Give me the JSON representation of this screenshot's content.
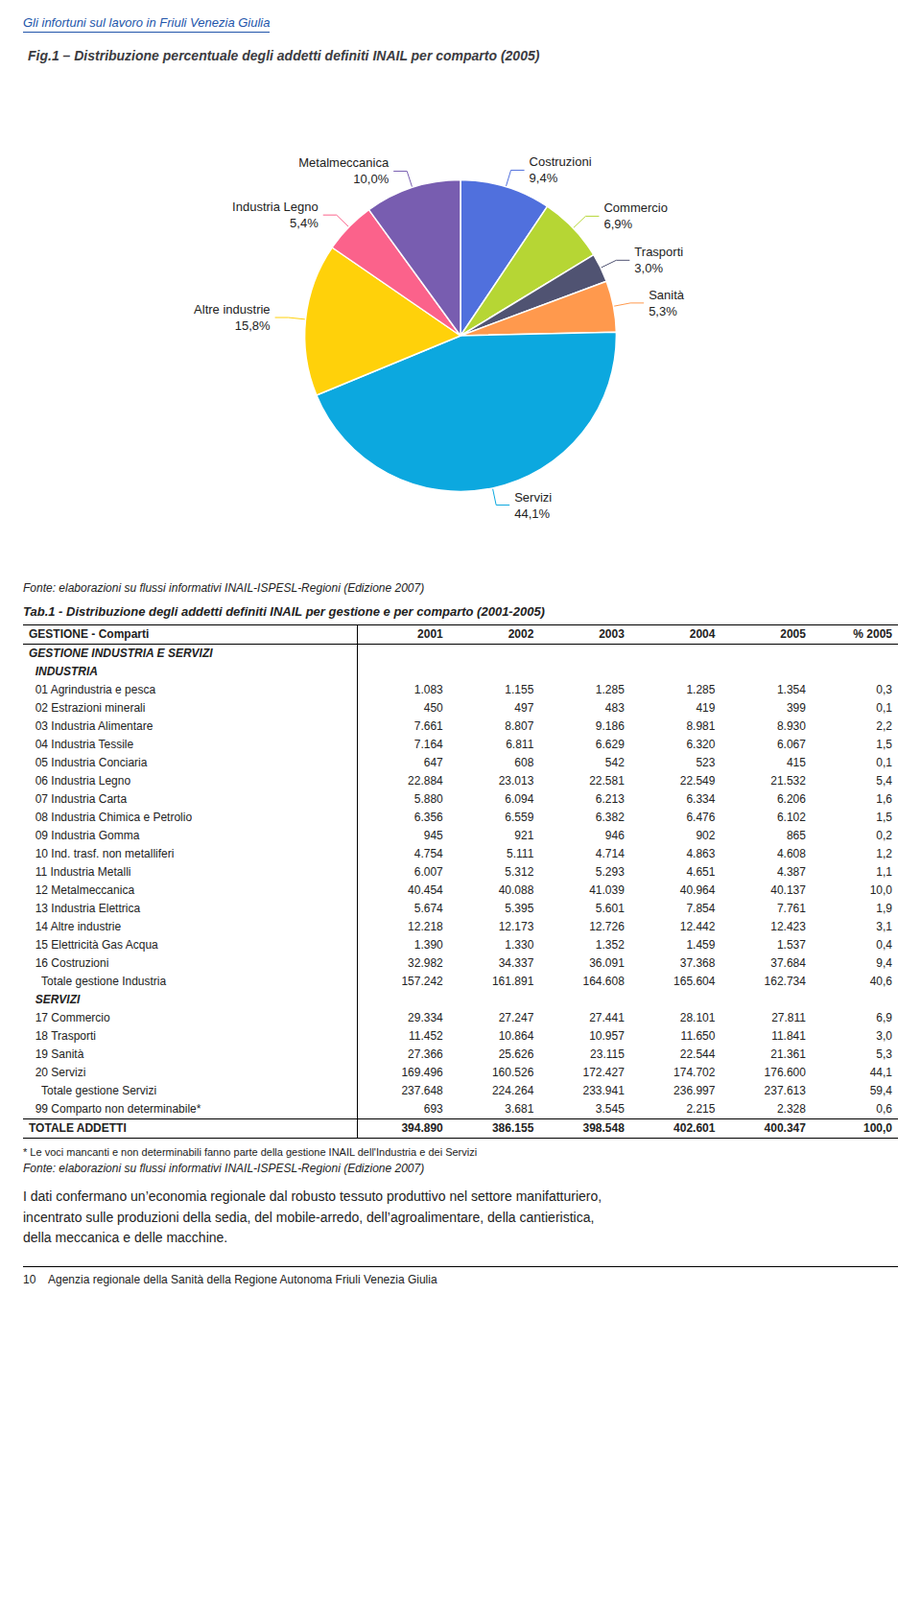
{
  "page_title": "Gli infortuni sul lavoro in Friuli Venezia Giulia",
  "chart_data": {
    "type": "pie",
    "title": "Fig.1 – Distribuzione percentuale degli addetti definiti INAIL per comparto (2005)",
    "categories": [
      "Costruzioni",
      "Commercio",
      "Trasporti",
      "Sanità",
      "Servizi",
      "Altre industrie",
      "Industria Legno",
      "Metalmeccanica"
    ],
    "values": [
      9.4,
      6.9,
      3.0,
      5.3,
      44.1,
      15.8,
      5.4,
      10.0
    ],
    "value_labels": [
      "9,4%",
      "6,9%",
      "3,0%",
      "5,3%",
      "44,1%",
      "15,8%",
      "5,4%",
      "10,0%"
    ],
    "data_labels": true,
    "legend": false
  },
  "chart_source": "Fonte: elaborazioni su flussi informativi INAIL-ISPESL-Regioni (Edizione 2007)",
  "table": {
    "title": "Tab.1 - Distribuzione degli addetti definiti INAIL per gestione e per comparto (2001-2005)",
    "columns": [
      "GESTIONE - Comparti",
      "2001",
      "2002",
      "2003",
      "2004",
      "2005",
      "% 2005"
    ],
    "rows": [
      [
        "GESTIONE INDUSTRIA E SERVIZI"
      ],
      [
        "  INDUSTRIA"
      ],
      [
        "  01 Agrindustria e pesca",
        "1.083",
        "1.155",
        "1.285",
        "1.285",
        "1.354",
        "0,3"
      ],
      [
        "  02 Estrazioni minerali",
        "450",
        "497",
        "483",
        "419",
        "399",
        "0,1"
      ],
      [
        "  03 Industria Alimentare",
        "7.661",
        "8.807",
        "9.186",
        "8.981",
        "8.930",
        "2,2"
      ],
      [
        "  04 Industria Tessile",
        "7.164",
        "6.811",
        "6.629",
        "6.320",
        "6.067",
        "1,5"
      ],
      [
        "  05 Industria Conciaria",
        "647",
        "608",
        "542",
        "523",
        "415",
        "0,1"
      ],
      [
        "  06 Industria Legno",
        "22.884",
        "23.013",
        "22.581",
        "22.549",
        "21.532",
        "5,4"
      ],
      [
        "  07 Industria Carta",
        "5.880",
        "6.094",
        "6.213",
        "6.334",
        "6.206",
        "1,6"
      ],
      [
        "  08 Industria Chimica e Petrolio",
        "6.356",
        "6.559",
        "6.382",
        "6.476",
        "6.102",
        "1,5"
      ],
      [
        "  09 Industria Gomma",
        "945",
        "921",
        "946",
        "902",
        "865",
        "0,2"
      ],
      [
        "  10 Ind. trasf. non metalliferi",
        "4.754",
        "5.111",
        "4.714",
        "4.863",
        "4.608",
        "1,2"
      ],
      [
        "  11 Industria Metalli",
        "6.007",
        "5.312",
        "5.293",
        "4.651",
        "4.387",
        "1,1"
      ],
      [
        "  12 Metalmeccanica",
        "40.454",
        "40.088",
        "41.039",
        "40.964",
        "40.137",
        "10,0"
      ],
      [
        "  13 Industria Elettrica",
        "5.674",
        "5.395",
        "5.601",
        "7.854",
        "7.761",
        "1,9"
      ],
      [
        "  14 Altre industrie",
        "12.218",
        "12.173",
        "12.726",
        "12.442",
        "12.423",
        "3,1"
      ],
      [
        "  15 Elettricità Gas Acqua",
        "1.390",
        "1.330",
        "1.352",
        "1.459",
        "1.537",
        "0,4"
      ],
      [
        "  16 Costruzioni",
        "32.982",
        "34.337",
        "36.091",
        "37.368",
        "37.684",
        "9,4"
      ],
      [
        "    Totale gestione Industria",
        "157.242",
        "161.891",
        "164.608",
        "165.604",
        "162.734",
        "40,6"
      ],
      [
        "  SERVIZI"
      ],
      [
        "  17 Commercio",
        "29.334",
        "27.247",
        "27.441",
        "28.101",
        "27.811",
        "6,9"
      ],
      [
        "  18 Trasporti",
        "11.452",
        "10.864",
        "10.957",
        "11.650",
        "11.841",
        "3,0"
      ],
      [
        "  19 Sanità",
        "27.366",
        "25.626",
        "23.115",
        "22.544",
        "21.361",
        "5,3"
      ],
      [
        "  20 Servizi",
        "169.496",
        "160.526",
        "172.427",
        "174.702",
        "176.600",
        "44,1"
      ],
      [
        "    Totale gestione Servizi",
        "237.648",
        "224.264",
        "233.941",
        "236.997",
        "237.613",
        "59,4"
      ],
      [
        "  99 Comparto non determinabile*",
        "693",
        "3.681",
        "3.545",
        "2.215",
        "2.328",
        "0,6"
      ],
      [
        "TOTALE ADDETTI",
        "394.890",
        "386.155",
        "398.548",
        "402.601",
        "400.347",
        "100,0"
      ]
    ],
    "footnote": "* Le voci mancanti e non determinabili fanno parte della gestione INAIL dell'Industria e dei Servizi",
    "source": "Fonte: elaborazioni su flussi informativi INAIL-ISPESL-Regioni (Edizione 2007)"
  },
  "body_text": "I dati confermano un’economia regionale dal robusto tessuto produttivo nel settore manifatturiero,\nincentrato sulle produzioni della sedia, del mobile-arredo, dell’agroalimentare, della cantieristica,\ndella meccanica e delle macchine.",
  "footer": "10    Agenzia regionale della Sanità della Regione Autonoma Friuli Venezia Giulia"
}
